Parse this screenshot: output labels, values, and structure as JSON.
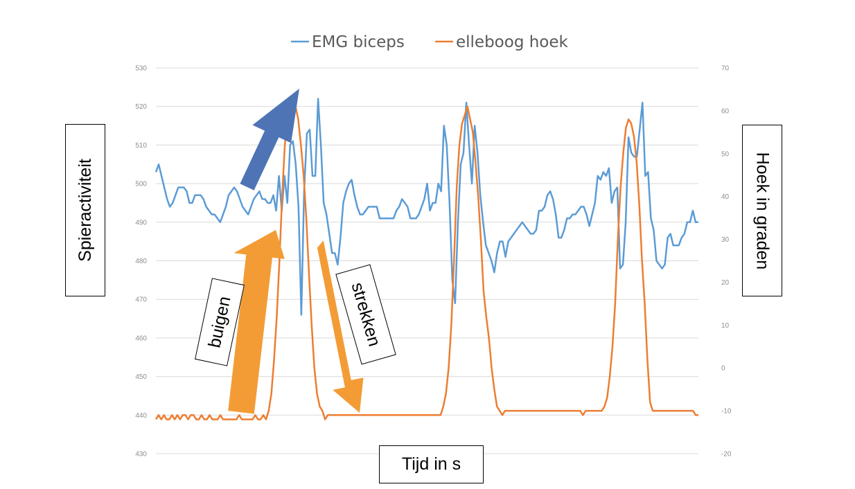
{
  "chart_data": {
    "type": "line",
    "legend": {
      "placement": "top",
      "entries": [
        "EMG biceps",
        "elleboog hoek"
      ]
    },
    "grid": true,
    "y_left": {
      "label": "Spieractiviteit",
      "min": 430,
      "max": 530,
      "ticks": [
        "530",
        "520",
        "510",
        "500",
        "490",
        "480",
        "470",
        "460",
        "450",
        "440",
        "430"
      ]
    },
    "y_right": {
      "label": "Hoek in graden",
      "min": -20,
      "max": 70,
      "ticks": [
        "70",
        "60",
        "50",
        "40",
        "30",
        "20",
        "10",
        "0",
        "-10",
        "-20"
      ]
    },
    "x_axis": {
      "label": "Tijd in s"
    },
    "series": [
      {
        "name": "EMG biceps",
        "axis": "left",
        "color": "#5b9bd5",
        "values": [
          503,
          505,
          502,
          499,
          496,
          494,
          495,
          497,
          499,
          499,
          499,
          498,
          495,
          495,
          497,
          497,
          497,
          496,
          494,
          493,
          492,
          492,
          491,
          490,
          492,
          494,
          497,
          498,
          499,
          498,
          496,
          494,
          493,
          492,
          494,
          496,
          497,
          498,
          496,
          496,
          495,
          495,
          497,
          493,
          502,
          493,
          502,
          495,
          510,
          511,
          505,
          494,
          466,
          498,
          513,
          514,
          502,
          502,
          522,
          510,
          495,
          492,
          487,
          482,
          482,
          479,
          486,
          495,
          498,
          500,
          501,
          497,
          494,
          492,
          492,
          493,
          494,
          494,
          494,
          494,
          491,
          491,
          491,
          491,
          491,
          491,
          493,
          494,
          496,
          495,
          494,
          491,
          491,
          491,
          492,
          494,
          496,
          500,
          493,
          495,
          495,
          500,
          498,
          515,
          510,
          495,
          475,
          469,
          490,
          505,
          508,
          521,
          510,
          500,
          515,
          508,
          497,
          490,
          484,
          482,
          480,
          477,
          482,
          485,
          485,
          481,
          485,
          486,
          487,
          488,
          489,
          490,
          489,
          488,
          487,
          487,
          488,
          493,
          493,
          494,
          497,
          498,
          496,
          492,
          486,
          486,
          488,
          491,
          491,
          492,
          492,
          493,
          494,
          494,
          492,
          489,
          492,
          495,
          502,
          501,
          503,
          502,
          504,
          495,
          498,
          499,
          478,
          479,
          490,
          512,
          508,
          507,
          507,
          514,
          521,
          502,
          503,
          491,
          488,
          480,
          479,
          478,
          479,
          486,
          487,
          484,
          484,
          484,
          486,
          487,
          490,
          490,
          493,
          490,
          490
        ]
      },
      {
        "name": "elleboog hoek",
        "axis": "right",
        "color": "#ed7d31",
        "values": [
          -12,
          -11,
          -12,
          -11,
          -12,
          -12,
          -11,
          -12,
          -11,
          -12,
          -11,
          -11,
          -12,
          -11,
          -11,
          -12,
          -12,
          -11,
          -12,
          -12,
          -11,
          -12,
          -12,
          -12,
          -11,
          -12,
          -12,
          -12,
          -12,
          -12,
          -12,
          -11,
          -12,
          -12,
          -12,
          -12,
          -12,
          -11,
          -12,
          -12,
          -11,
          -12,
          -10,
          -6,
          2,
          12,
          25,
          40,
          52,
          58,
          60,
          61,
          61,
          58,
          52,
          45,
          35,
          22,
          10,
          0,
          -6,
          -9,
          -10,
          -12,
          -11,
          -11,
          -11,
          -11,
          -11,
          -11,
          -11,
          -11,
          -11,
          -11,
          -11,
          -11,
          -11,
          -11,
          -11,
          -11,
          -11,
          -11,
          -11,
          -11,
          -11,
          -11,
          -11,
          -11,
          -11,
          -11,
          -11,
          -11,
          -11,
          -11,
          -11,
          -11,
          -11,
          -11,
          -11,
          -11,
          -11,
          -11,
          -11,
          -11,
          -11,
          -11,
          -11,
          -9,
          -6,
          0,
          10,
          25,
          42,
          52,
          57,
          59,
          61,
          58,
          55,
          48,
          40,
          30,
          18,
          12,
          7,
          0,
          -5,
          -9,
          -10,
          -11,
          -10,
          -10,
          -10,
          -10,
          -10,
          -10,
          -10,
          -10,
          -10,
          -10,
          -10,
          -10,
          -10,
          -10,
          -10,
          -10,
          -10,
          -10,
          -10,
          -10,
          -10,
          -10,
          -10,
          -10,
          -10,
          -10,
          -10,
          -10,
          -10,
          -11,
          -10,
          -10,
          -10,
          -10,
          -10,
          -10,
          -10,
          -9,
          -7,
          -2,
          5,
          15,
          30,
          42,
          50,
          56,
          58,
          57,
          54,
          48,
          38,
          25,
          15,
          2,
          -8,
          -10,
          -10,
          -10,
          -10,
          -10,
          -10,
          -10,
          -10,
          -10,
          -10,
          -10,
          -10,
          -10,
          -10,
          -10,
          -10,
          -11,
          -11
        ]
      }
    ],
    "annotations": [
      "buigen",
      "strekken"
    ]
  }
}
